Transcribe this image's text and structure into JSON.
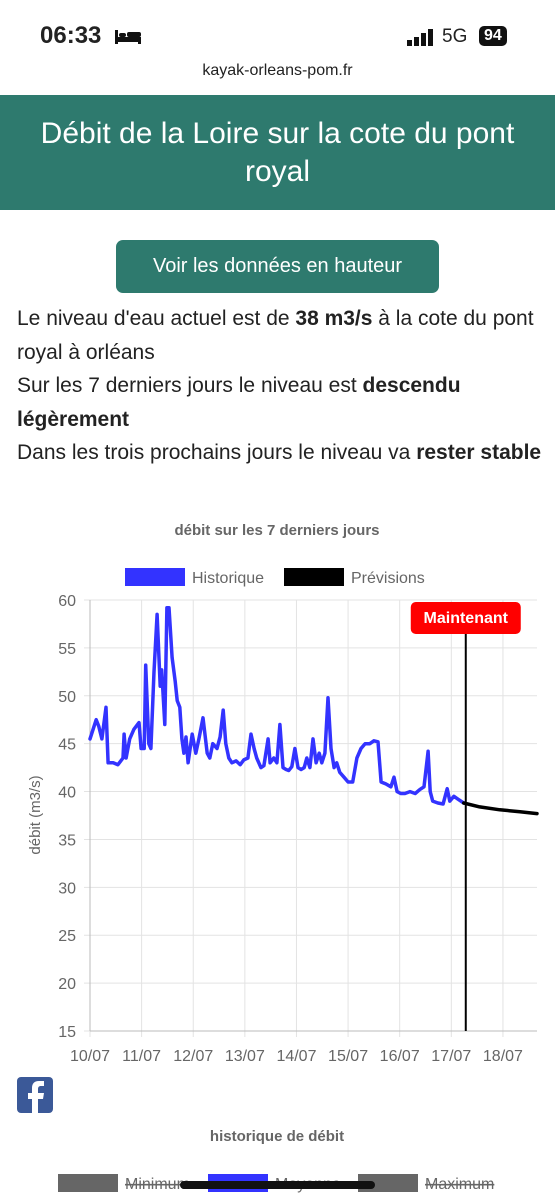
{
  "status_bar": {
    "time": "06:33",
    "network": "5G",
    "battery": "94"
  },
  "url": "kayak-orleans-pom.fr",
  "header": {
    "title": "Débit de la Loire sur la cote du pont royal"
  },
  "button": "Voir les données en hauteur",
  "paragraphs": [
    [
      "Le niveau d'eau actuel est de ",
      "38 m3/s",
      " à la cote du pont royal à orléans"
    ],
    [
      "Sur les 7 derniers jours le niveau est ",
      "descendu légèrement"
    ],
    [
      "Dans les trois prochains jours le niveau va ",
      "rester stable"
    ]
  ],
  "chart_data": [
    {
      "type": "line",
      "title": "débit sur les 7 derniers jours",
      "y_label": "débit (m3/s)",
      "xlim": [
        0,
        8.66
      ],
      "xticks": [
        {
          "value": 0,
          "label": "10/07"
        },
        {
          "value": 1,
          "label": "11/07"
        },
        {
          "value": 2,
          "label": "12/07"
        },
        {
          "value": 3,
          "label": "13/07"
        },
        {
          "value": 4,
          "label": "14/07"
        },
        {
          "value": 5,
          "label": "15/07"
        },
        {
          "value": 6,
          "label": "16/07"
        },
        {
          "value": 7,
          "label": "17/07"
        },
        {
          "value": 8,
          "label": "18/07"
        }
      ],
      "ylim": [
        15,
        60
      ],
      "yticks": [
        15,
        20,
        25,
        30,
        35,
        40,
        45,
        50,
        55,
        60
      ],
      "grid": true,
      "annotation": {
        "text": "Maintenant",
        "x": 7.28,
        "color": "#ff0000"
      },
      "series": [
        {
          "name": "Historique",
          "color": "#3333ff",
          "x": [
            0,
            0.06,
            0.12,
            0.17,
            0.23,
            0.31,
            0.35,
            0.45,
            0.54,
            0.64,
            0.66,
            0.7,
            0.77,
            0.85,
            0.95,
            0.99,
            1.05,
            1.08,
            1.14,
            1.18,
            1.24,
            1.3,
            1.36,
            1.39,
            1.45,
            1.49,
            1.53,
            1.59,
            1.65,
            1.69,
            1.74,
            1.78,
            1.82,
            1.86,
            1.9,
            1.98,
            2.05,
            2.11,
            2.19,
            2.27,
            2.32,
            2.38,
            2.46,
            2.52,
            2.58,
            2.63,
            2.69,
            2.75,
            2.83,
            2.91,
            2.98,
            3.06,
            3.12,
            3.18,
            3.23,
            3.31,
            3.37,
            3.45,
            3.49,
            3.56,
            3.62,
            3.68,
            3.74,
            3.8,
            3.85,
            3.91,
            3.97,
            4.03,
            4.09,
            4.15,
            4.2,
            4.26,
            4.32,
            4.38,
            4.44,
            4.49,
            4.55,
            4.61,
            4.67,
            4.73,
            4.78,
            4.84,
            4.92,
            5.0,
            5.09,
            5.17,
            5.25,
            5.33,
            5.42,
            5.5,
            5.58,
            5.64,
            5.73,
            5.83,
            5.89,
            5.95,
            6.02,
            6.1,
            6.2,
            6.3,
            6.39,
            6.47,
            6.55,
            6.59,
            6.64,
            6.74,
            6.84,
            6.92,
            6.97,
            7.05,
            7.13,
            7.24
          ],
          "values": [
            45.5,
            46.5,
            47.5,
            46.8,
            45.5,
            48.8,
            43,
            43,
            42.8,
            43.5,
            46,
            43.5,
            45.5,
            46.5,
            47.2,
            44.5,
            44.5,
            53.2,
            45,
            44.5,
            52.5,
            58.5,
            51,
            52.7,
            47,
            59.2,
            59.2,
            54,
            51.5,
            49.5,
            48.8,
            45.5,
            44,
            45.7,
            43,
            46,
            44,
            45.5,
            47.7,
            44,
            43.5,
            45,
            44.5,
            45.7,
            48.5,
            45,
            43.5,
            43,
            43.2,
            42.8,
            43.3,
            43.5,
            46,
            44.5,
            43.5,
            42.5,
            42.7,
            45.5,
            43,
            43.5,
            43,
            47,
            42.5,
            42.3,
            42.2,
            42.6,
            44.5,
            42.5,
            42.3,
            42.5,
            43.5,
            42.5,
            45.5,
            43,
            44,
            43,
            44,
            49.8,
            44.5,
            42.5,
            43,
            42,
            41.5,
            41,
            41,
            43.5,
            44.5,
            45,
            45,
            45.3,
            45.2,
            41,
            40.8,
            40.5,
            41.5,
            40,
            39.8,
            39.8,
            40,
            39.8,
            40.2,
            40.5,
            44.2,
            40,
            39,
            38.8,
            38.7,
            40.3,
            39,
            39.5,
            39.2,
            38.8
          ]
        },
        {
          "name": "Prévisions",
          "color": "#000000",
          "x": [
            7.24,
            7.55,
            7.94,
            8.33,
            8.66
          ],
          "values": [
            38.8,
            38.4,
            38.1,
            37.9,
            37.7
          ]
        }
      ]
    },
    {
      "type": "line",
      "title": "historique de débit",
      "series": [
        {
          "name": "Minimum",
          "color": "#666666",
          "hidden": true
        },
        {
          "name": "Moyenne",
          "color": "#3333ff",
          "hidden": true
        },
        {
          "name": "Maximum",
          "color": "#666666",
          "hidden": true
        }
      ]
    }
  ]
}
